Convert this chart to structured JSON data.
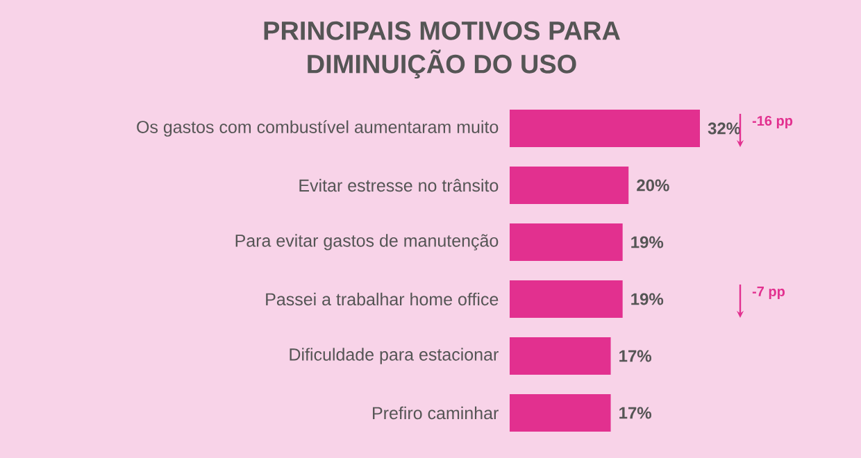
{
  "chart_data": {
    "type": "bar",
    "orientation": "horizontal",
    "title": "PRINCIPAIS MOTIVOS PARA\nDIMINUIÇÃO DO USO",
    "categories": [
      "Os gastos com combustível aumentaram muito",
      "Evitar estresse no trânsito",
      "Para evitar gastos de manutenção",
      "Passei a trabalhar home office",
      "Dificuldade para estacionar",
      "Prefiro caminhar"
    ],
    "values": [
      32,
      20,
      19,
      19,
      17,
      17
    ],
    "color": "#e2308f",
    "data_labels": true,
    "value_labels": [
      "32%",
      "20%",
      "19%",
      "19%",
      "17%",
      "17%"
    ],
    "tick_labels": "y",
    "annotations": [
      "-16 pp",
      "-7 pp"
    ]
  }
}
